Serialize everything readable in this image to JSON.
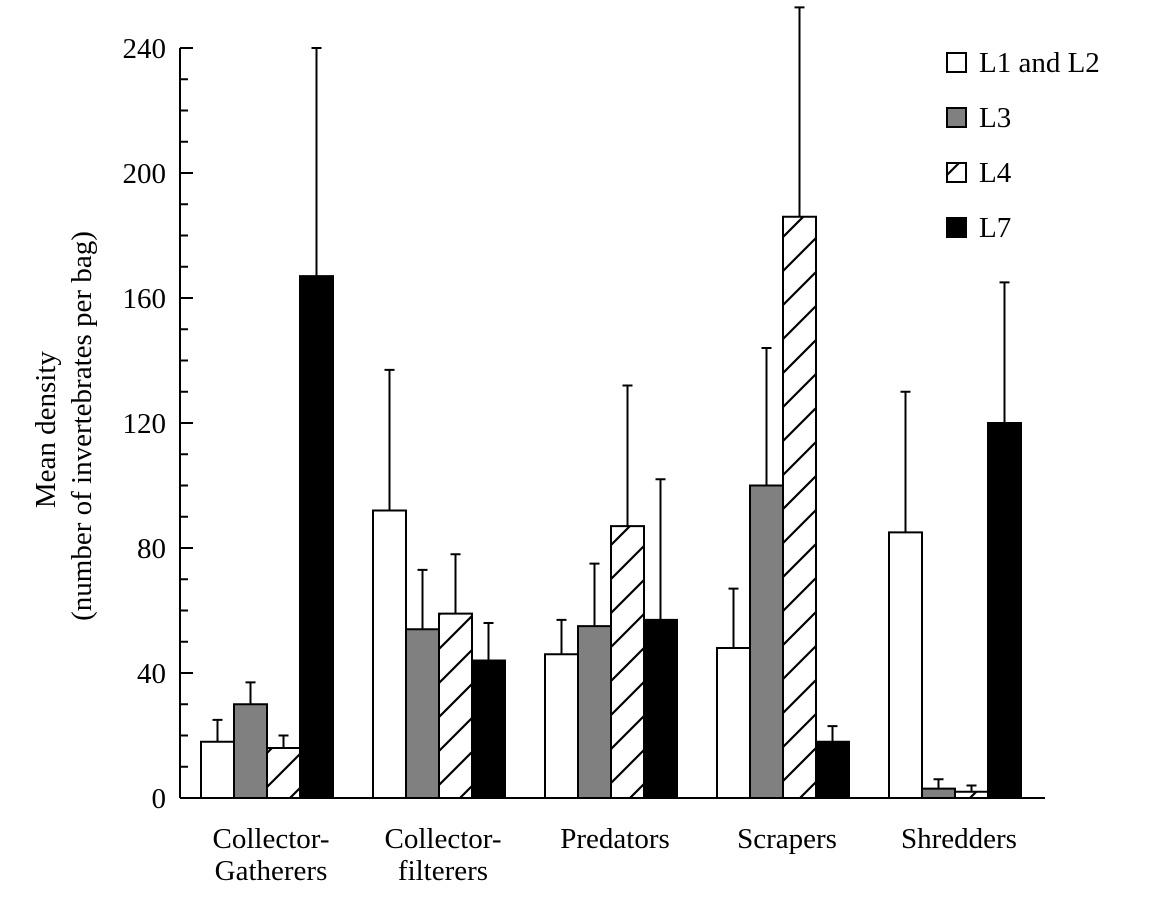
{
  "chart_data": {
    "type": "bar",
    "title": "",
    "ylabel": [
      "Mean  density",
      "(number of invertebrates per bag)"
    ],
    "xlabel": "",
    "ylim": [
      0,
      240
    ],
    "yticks": [
      0,
      40,
      80,
      120,
      160,
      200,
      240
    ],
    "categories": [
      [
        "Collector-",
        "Gatherers"
      ],
      [
        "Collector-",
        "filterers"
      ],
      [
        "Predators"
      ],
      [
        "Scrapers"
      ],
      [
        "Shredders"
      ]
    ],
    "legend_position": "top-right",
    "series": [
      {
        "name": "L1 and L2",
        "fill": "white",
        "values": [
          18,
          92,
          46,
          48,
          85
        ],
        "errors": [
          7,
          45,
          11,
          19,
          45
        ]
      },
      {
        "name": "L3",
        "fill": "gray",
        "values": [
          30,
          54,
          55,
          100,
          3
        ],
        "errors": [
          7,
          19,
          20,
          44,
          3
        ]
      },
      {
        "name": "L4",
        "fill": "hatched",
        "values": [
          16,
          59,
          87,
          186,
          2
        ],
        "errors": [
          4,
          19,
          45,
          67,
          2
        ]
      },
      {
        "name": "L7",
        "fill": "black",
        "values": [
          167,
          44,
          57,
          18,
          120
        ],
        "errors": [
          73,
          12,
          45,
          5,
          45
        ]
      }
    ]
  }
}
